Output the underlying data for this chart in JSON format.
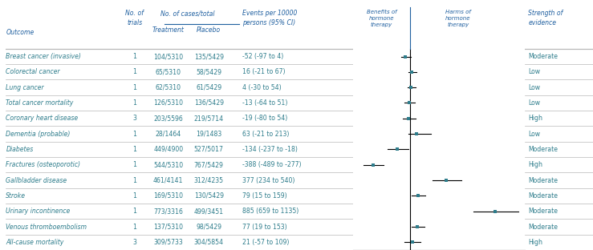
{
  "outcomes": [
    "Breast cancer (invasive)",
    "Colorectal cancer",
    "Lung cancer",
    "Total cancer mortality",
    "Coronary heart disease",
    "Dementia (probable)",
    "Diabetes",
    "Fractures (osteoporotic)",
    "Gallbladder disease",
    "Stroke",
    "Urinary incontinence",
    "Venous thromboembolism",
    "All-cause mortality"
  ],
  "n_trials": [
    1,
    1,
    1,
    1,
    3,
    1,
    1,
    1,
    1,
    1,
    1,
    1,
    3
  ],
  "treatment": [
    "104/5310",
    "65/5310",
    "62/5310",
    "126/5310",
    "203/5596",
    "28/1464",
    "449/4900",
    "544/5310",
    "461/4141",
    "169/5310",
    "773/3316",
    "137/5310",
    "309/5733"
  ],
  "placebo": [
    "135/5429",
    "58/5429",
    "61/5429",
    "136/5429",
    "219/5714",
    "19/1483",
    "527/5017",
    "767/5429",
    "312/4235",
    "130/5429",
    "499/3451",
    "98/5429",
    "304/5854"
  ],
  "events_label": [
    "-52 (-97 to 4)",
    "16 (-21 to 67)",
    "4 (-30 to 54)",
    "-13 (-64 to 51)",
    "-19 (-80 to 54)",
    "63 (-21 to 213)",
    "-134 (-237 to -18)",
    "-388 (-489 to -277)",
    "377 (234 to 540)",
    "79 (15 to 159)",
    "885 (659 to 1135)",
    "77 (19 to 153)",
    "21 (-57 to 109)"
  ],
  "point_est": [
    -52,
    16,
    4,
    -13,
    -19,
    63,
    -134,
    -388,
    377,
    79,
    885,
    77,
    21
  ],
  "ci_low": [
    -97,
    -21,
    -30,
    -64,
    -80,
    -21,
    -237,
    -489,
    234,
    15,
    659,
    19,
    -57
  ],
  "ci_high": [
    4,
    67,
    54,
    51,
    54,
    213,
    -18,
    -277,
    540,
    159,
    1135,
    153,
    109
  ],
  "strength": [
    "Moderate",
    "Low",
    "Low",
    "Low",
    "High",
    "Low",
    "Moderate",
    "High",
    "Moderate",
    "Moderate",
    "Moderate",
    "Moderate",
    "High"
  ],
  "teal": "#2e7d8c",
  "header_blue": "#2060a0",
  "row_sep": "#b8b8b8",
  "black": "#000000",
  "plot_xlim": [
    -600,
    1200
  ],
  "plot_xticks": [
    -600,
    -400,
    -200,
    0,
    200,
    400,
    600,
    800,
    1000,
    1200
  ],
  "xlabel": "Events per 10000 persons",
  "benefits_label": "Benefits of\nhormone\ntherapy",
  "harms_label": "Harms of\nhormone\ntherapy",
  "strength_header": "Strength of\nevidence"
}
